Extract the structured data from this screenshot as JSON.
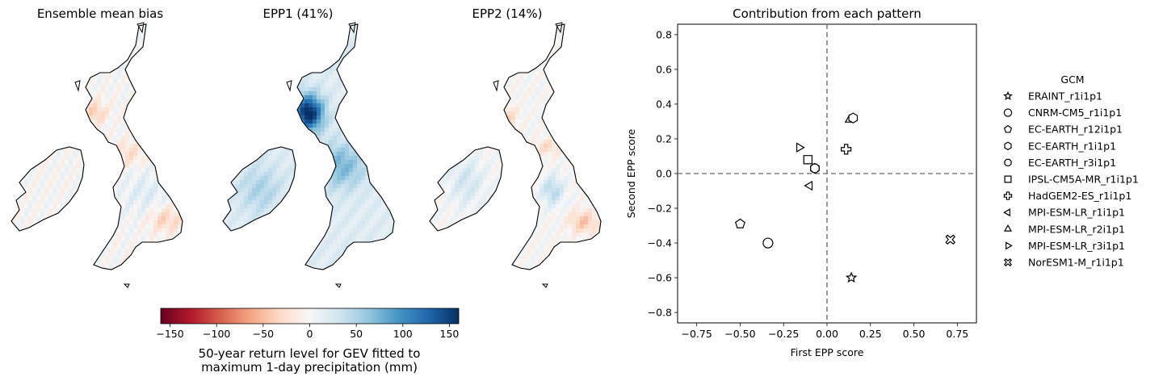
{
  "colors": {
    "land_outline": "#000000",
    "axis": "#000000",
    "zero_line": "#808080",
    "marker_fill": "#ffffff",
    "colormap": [
      "#67001f",
      "#b2182b",
      "#d6604d",
      "#f4a582",
      "#fddbc7",
      "#f7f7f7",
      "#d1e5f0",
      "#92c5de",
      "#4393c3",
      "#2166ac",
      "#053061"
    ]
  },
  "maps": [
    {
      "title": "Ensemble mean bias",
      "pattern": "bias"
    },
    {
      "title": "EPP1 (41%)",
      "pattern": "epp1"
    },
    {
      "title": "EPP2 (14%)",
      "pattern": "epp2"
    }
  ],
  "colorbar": {
    "vmin": -160,
    "vmax": 160,
    "ticks": [
      -150,
      -100,
      -50,
      0,
      50,
      100,
      150
    ],
    "tick_labels": [
      "−150",
      "−100",
      "−50",
      "0",
      "50",
      "100",
      "150"
    ],
    "label_line1": "50-year return level for GEV fitted to",
    "label_line2": "maximum 1-day precipitation (mm)"
  },
  "chart_data": {
    "type": "scatter",
    "title": "Contribution from each pattern",
    "xlabel": "First EPP score",
    "ylabel": "Second EPP score",
    "xlim": [
      -0.86,
      0.86
    ],
    "ylim": [
      -0.86,
      0.86
    ],
    "xticks": [
      -0.75,
      -0.5,
      -0.25,
      0.0,
      0.25,
      0.5,
      0.75
    ],
    "xtick_labels": [
      "−0.75",
      "−0.50",
      "−0.25",
      "0.00",
      "0.25",
      "0.50",
      "0.75"
    ],
    "yticks": [
      -0.8,
      -0.6,
      -0.4,
      -0.2,
      0.0,
      0.2,
      0.4,
      0.6,
      0.8
    ],
    "ytick_labels": [
      "−0.8",
      "−0.6",
      "−0.4",
      "−0.2",
      "0.0",
      "0.2",
      "0.4",
      "0.6",
      "0.8"
    ],
    "grid": false,
    "zero_lines": true,
    "legend_title": "GCM",
    "legend_position": "right",
    "series": [
      {
        "name": "ERAINT_r1i1p1",
        "marker": "star",
        "x": 0.14,
        "y": -0.6
      },
      {
        "name": "CNRM-CM5_r1i1p1",
        "marker": "circle",
        "x": -0.34,
        "y": -0.4
      },
      {
        "name": "EC-EARTH_r12i1p1",
        "marker": "pentagon",
        "x": -0.5,
        "y": -0.29
      },
      {
        "name": "EC-EARTH_r1i1p1",
        "marker": "hexagon",
        "x": -0.07,
        "y": 0.03
      },
      {
        "name": "EC-EARTH_r3i1p1",
        "marker": "octagon",
        "x": -0.07,
        "y": 0.03
      },
      {
        "name": "IPSL-CM5A-MR_r1i1p1",
        "marker": "square",
        "x": -0.11,
        "y": 0.08
      },
      {
        "name": "HadGEM2-ES_r1i1p1",
        "marker": "plus",
        "x": 0.11,
        "y": 0.14
      },
      {
        "name": "MPI-ESM-LR_r1i1p1",
        "marker": "triangle-left",
        "x": -0.1,
        "y": -0.07
      },
      {
        "name": "MPI-ESM-LR_r2i1p1",
        "marker": "triangle-up",
        "x": 0.13,
        "y": 0.31
      },
      {
        "name": "MPI-ESM-LR_r3i1p1",
        "marker": "triangle-right",
        "x": -0.16,
        "y": 0.15
      },
      {
        "name": "NorESM1-M_r1i1p1",
        "marker": "x-filled",
        "x": 0.71,
        "y": -0.38
      }
    ],
    "extra_points": [
      {
        "marker": "hexagon",
        "x": 0.15,
        "y": 0.32
      }
    ]
  }
}
